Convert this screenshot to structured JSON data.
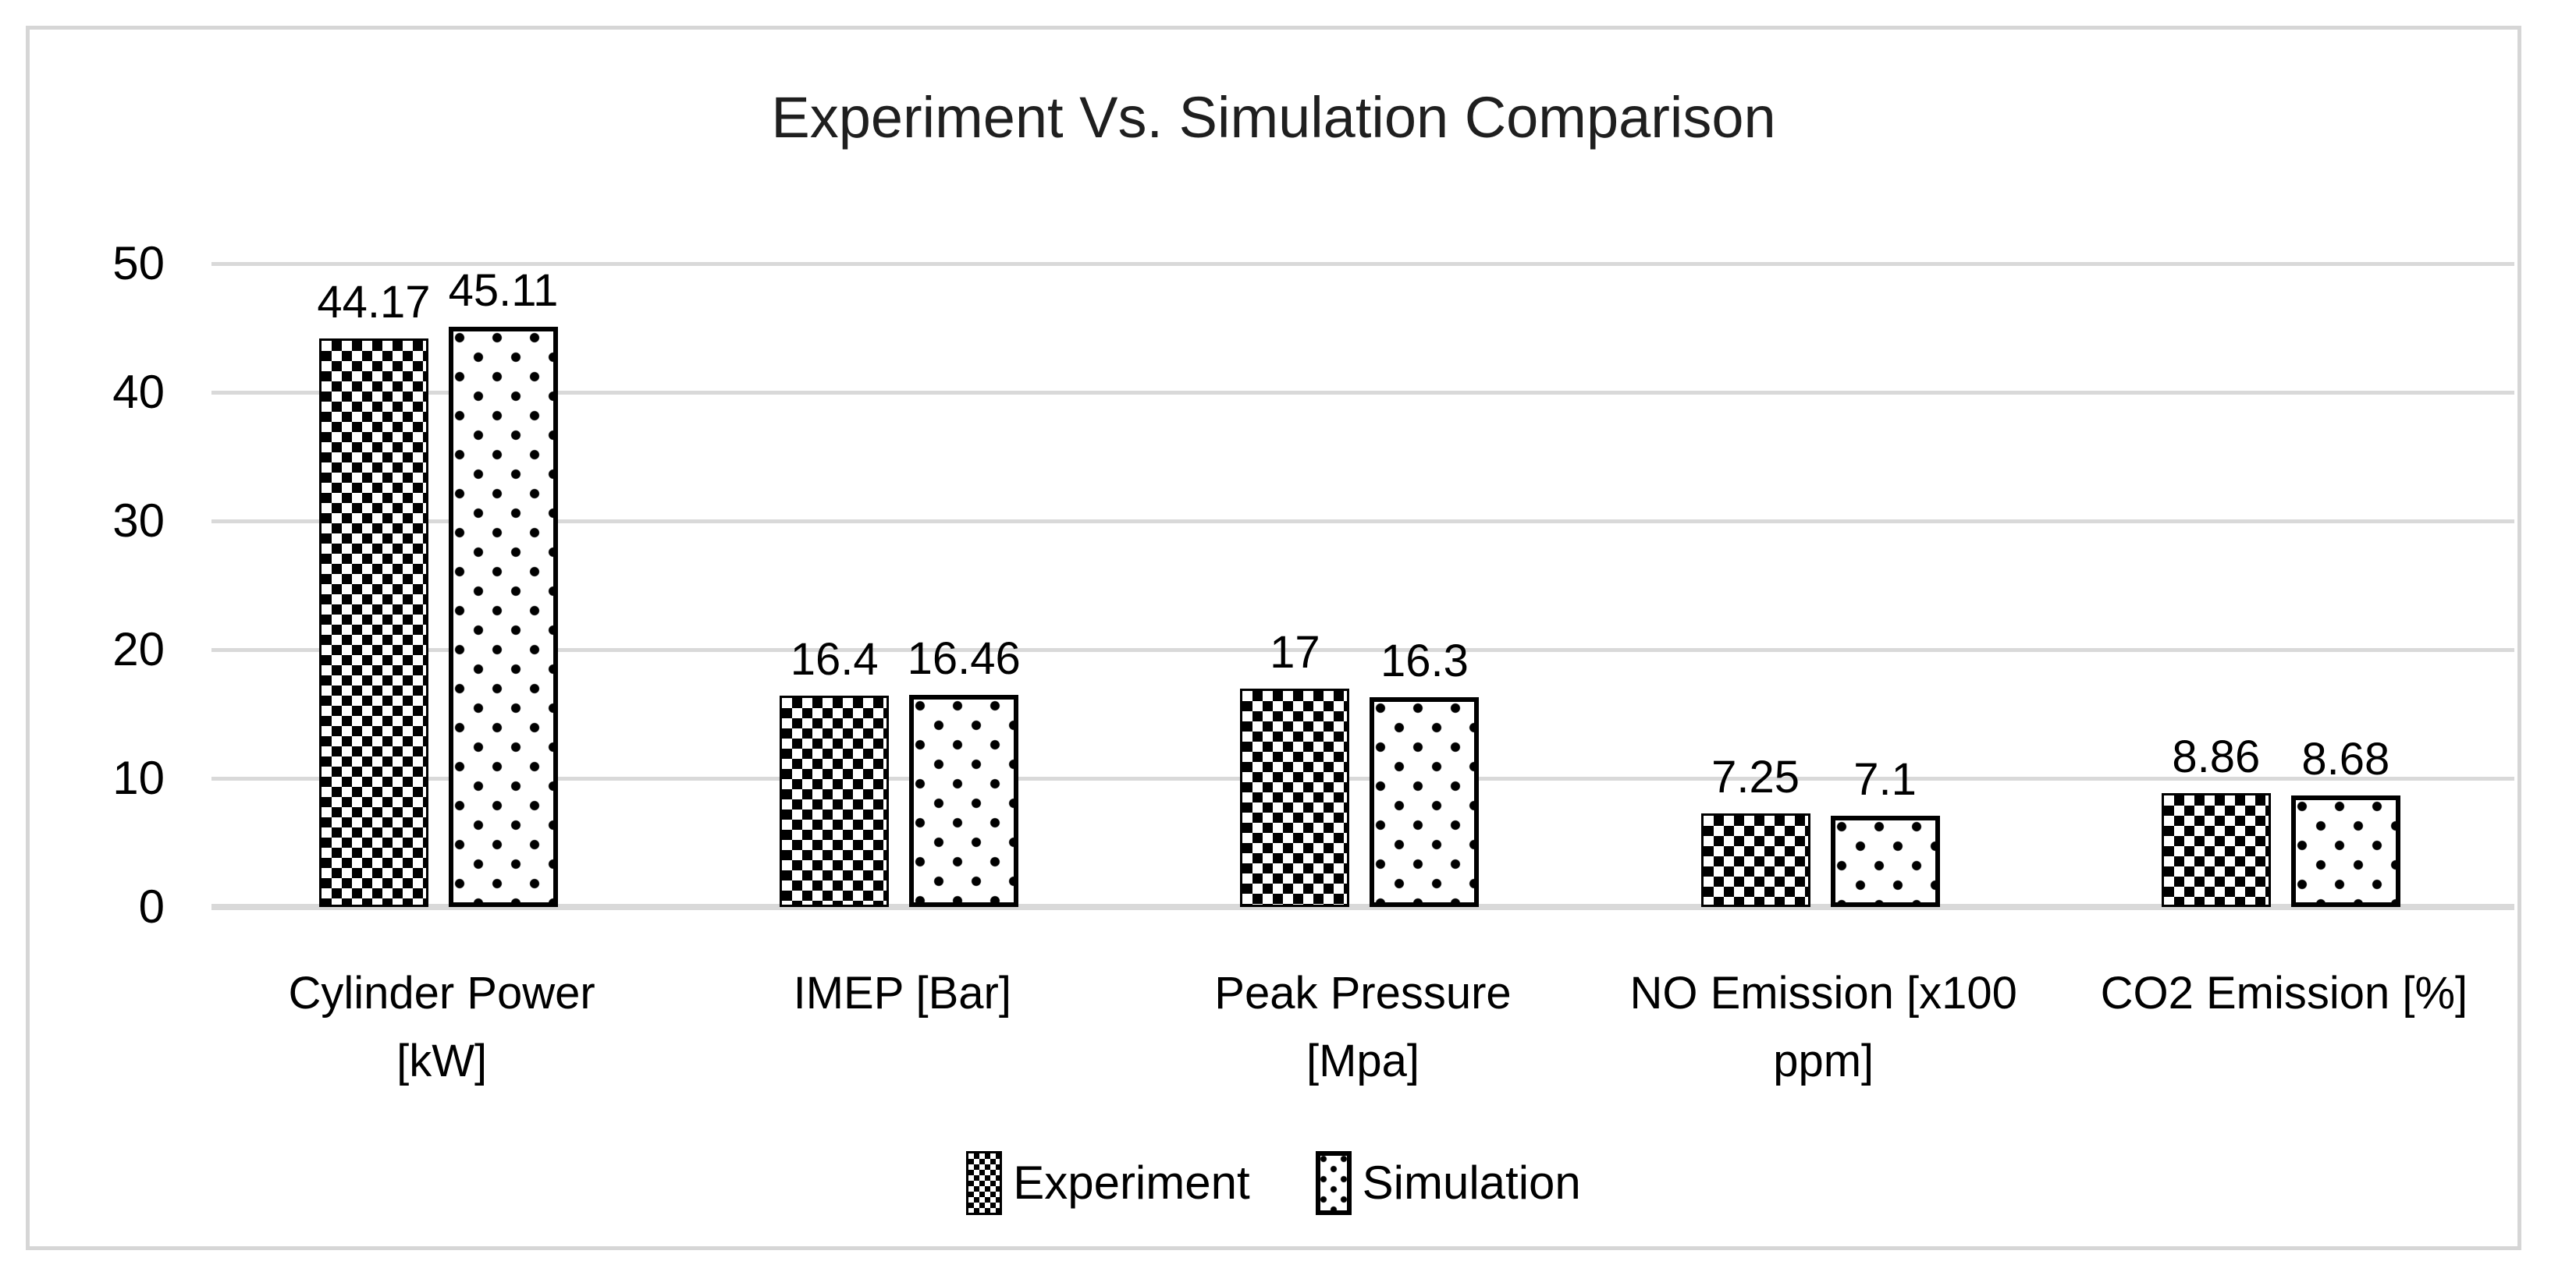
{
  "title": "Experiment Vs. Simulation Comparison",
  "chart_data": {
    "type": "bar",
    "title": "Experiment Vs. Simulation Comparison",
    "categories": [
      "Cylinder Power\n[kW]",
      "IMEP [Bar]",
      "Peak Pressure\n[Mpa]",
      "NO Emission [x100\nppm]",
      "CO2 Emission [%]"
    ],
    "series": [
      {
        "name": "Experiment",
        "pattern": "checker",
        "values": [
          44.17,
          16.4,
          17,
          7.25,
          8.86
        ]
      },
      {
        "name": "Simulation",
        "pattern": "dots",
        "values": [
          45.11,
          16.46,
          16.3,
          7.1,
          8.68
        ]
      }
    ],
    "value_labels": [
      [
        "44.17",
        "16.4",
        "17",
        "7.25",
        "8.86"
      ],
      [
        "45.11",
        "16.46",
        "16.3",
        "7.1",
        "8.68"
      ]
    ],
    "y_ticks": [
      0,
      10,
      20,
      30,
      40,
      50
    ],
    "ylim": [
      0,
      50
    ],
    "grid": true,
    "legend_position": "bottom",
    "colors": {
      "pattern_fg": "#000000",
      "bar_bg": "#ffffff",
      "grid": "#d9d9d9",
      "frame_border": "#d6d6d6",
      "text": "#000000"
    }
  }
}
